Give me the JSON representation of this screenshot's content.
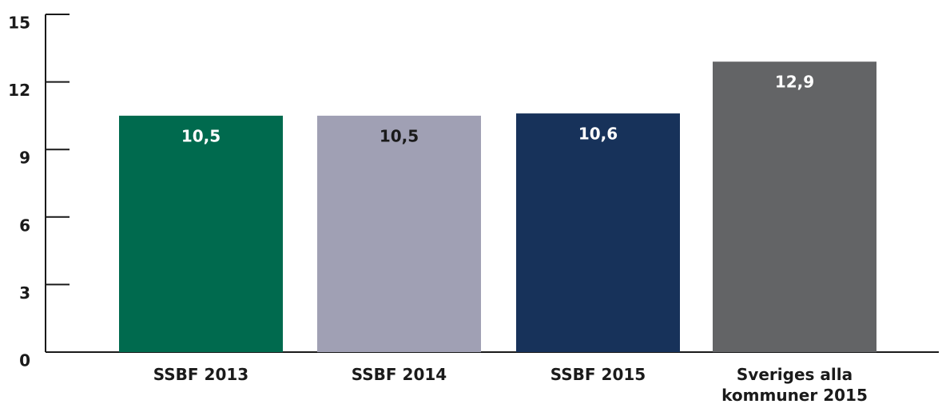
{
  "chart_data": {
    "type": "bar",
    "categories": [
      "SSBF 2013",
      "SSBF 2014",
      "SSBF 2015",
      "Sveriges alla kommuner 2015"
    ],
    "values": [
      10.5,
      10.5,
      10.6,
      12.9
    ],
    "value_labels": [
      "10,5",
      "10,5",
      "10,6",
      "12,9"
    ],
    "colors": [
      "#006a4e",
      "#a0a0b4",
      "#17325a",
      "#636466"
    ],
    "ylim": [
      0,
      15
    ],
    "yticks": [
      0,
      3,
      6,
      9,
      12,
      15
    ]
  }
}
